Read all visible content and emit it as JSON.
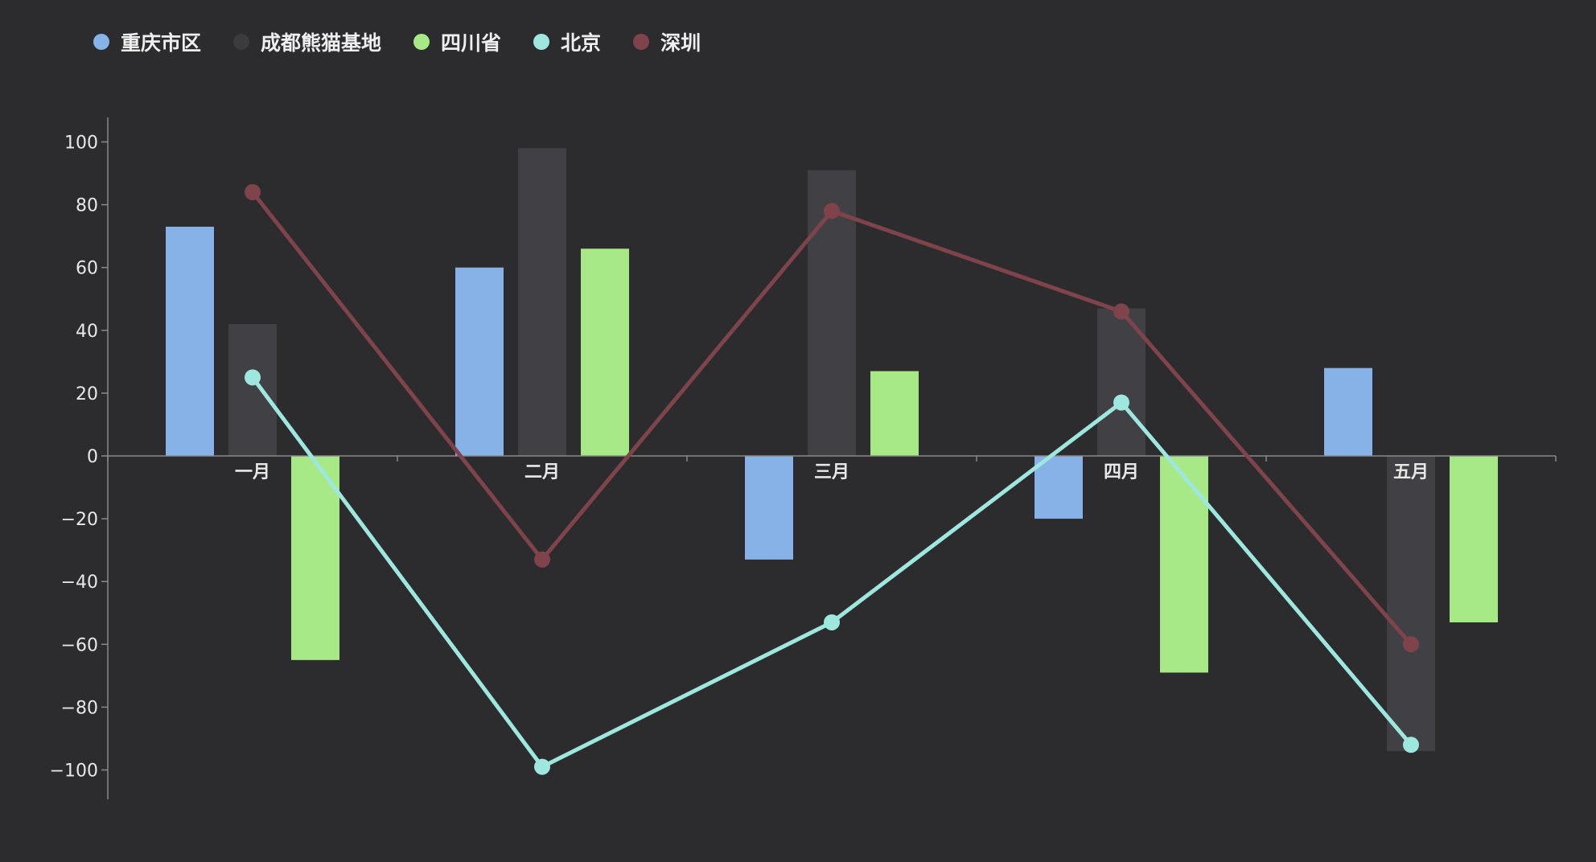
{
  "chart_data": {
    "type": "bar",
    "categories": [
      "一月",
      "二月",
      "三月",
      "四月",
      "五月"
    ],
    "ylim": [
      -100,
      100
    ],
    "yticks": [
      100,
      80,
      60,
      40,
      20,
      0,
      -20,
      -40,
      -60,
      -80,
      -100
    ],
    "ytick_labels": [
      "100",
      "80",
      "60",
      "40",
      "20",
      "0",
      "−20",
      "−40",
      "−60",
      "−80",
      "−100"
    ],
    "legend_position": "top-left",
    "grid": false,
    "series": [
      {
        "name": "重庆市区",
        "type": "bar",
        "color": "#86b2e8",
        "values": [
          73,
          60,
          -33,
          -20,
          28
        ]
      },
      {
        "name": "成都熊猫基地",
        "type": "bar",
        "color": "#414045",
        "legend_color": "#3b3b3e",
        "values": [
          42,
          98,
          91,
          47,
          -94
        ]
      },
      {
        "name": "四川省",
        "type": "bar",
        "color": "#a7e987",
        "values": [
          -65,
          66,
          27,
          -69,
          -53
        ]
      },
      {
        "name": "北京",
        "type": "line",
        "color": "#9ee7df",
        "values": [
          25,
          -99,
          -53,
          17,
          -92
        ]
      },
      {
        "name": "深圳",
        "type": "line",
        "color": "#7f444b",
        "values": [
          84,
          -33,
          78,
          46,
          -60
        ]
      }
    ]
  }
}
